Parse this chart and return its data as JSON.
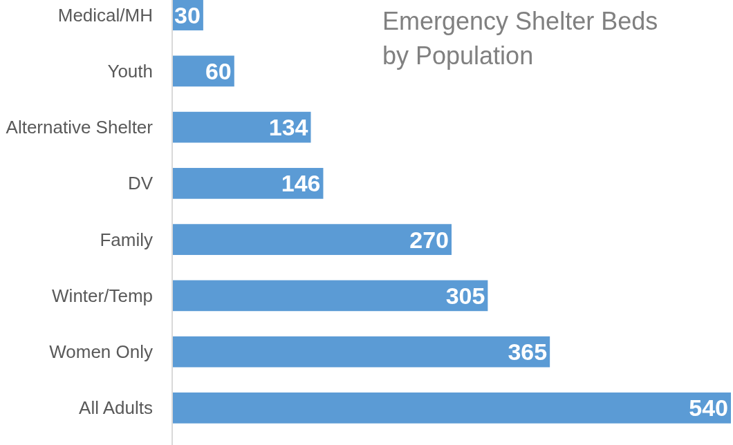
{
  "chart_data": {
    "type": "bar",
    "orientation": "horizontal",
    "title": "Emergency Shelter Beds\nby Population",
    "categories": [
      "Medical/MH",
      "Youth",
      "Alternative Shelter",
      "DV",
      "Family",
      "Winter/Temp",
      "Women Only",
      "All Adults"
    ],
    "values": [
      30,
      60,
      134,
      146,
      270,
      305,
      365,
      540
    ],
    "color": "#5b9bd5",
    "data_labels": true
  }
}
